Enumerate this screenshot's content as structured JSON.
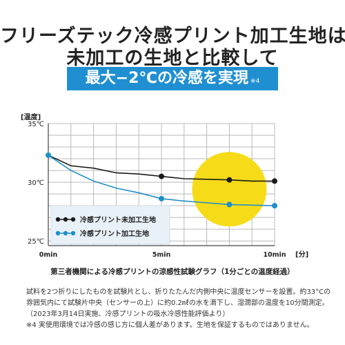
{
  "header": {
    "line1": "フリーズテック冷感プリント加工生地は",
    "line2": "未加工の生地と比較して",
    "banner": "最大−2℃の冷感を実現",
    "banner_note": "※4"
  },
  "colors": {
    "black_series": "#1a1a1a",
    "blue_series": "#1f8fc9",
    "banner": "#1f8fd1",
    "highlight": "#f6dc18",
    "grid": "#b8b8b8",
    "legend_bg": "#e8f1f8"
  },
  "chart_data": {
    "type": "line",
    "title": "第三者機関による冷感プリントの涼感性試験グラフ（1分ごとの温度経過）",
    "ylabel": "[温度]",
    "xlabel": "[分]",
    "ylim": [
      24.6,
      35
    ],
    "xlim": [
      0,
      10
    ],
    "y_ticks": [
      "35℃",
      "30℃",
      "25℃"
    ],
    "y_tick_values": [
      35,
      30,
      25
    ],
    "x_ticks": [
      "0min",
      "5min",
      "10min"
    ],
    "x_tick_values": [
      0,
      5,
      10
    ],
    "grid": true,
    "legend_position": "bottom-left",
    "highlight_circle": {
      "x": 8,
      "y": 29.4
    },
    "x": [
      0,
      1,
      2,
      3,
      4,
      5,
      6,
      7,
      8,
      9,
      10
    ],
    "series": [
      {
        "name": "冷感プリント未加工生地",
        "color": "#1a1a1a",
        "values": [
          32.3,
          31.4,
          31.2,
          30.8,
          30.7,
          30.5,
          30.3,
          30.25,
          30.2,
          30.1,
          30.1
        ],
        "markers_at": [
          5,
          8,
          10
        ]
      },
      {
        "name": "冷感プリント加工生地",
        "color": "#1f8fc9",
        "values": [
          32.3,
          31.0,
          30.1,
          29.5,
          29.1,
          28.6,
          28.4,
          28.25,
          28.1,
          28.05,
          28.0
        ],
        "markers_at": [
          0,
          5,
          8,
          10
        ]
      }
    ]
  },
  "notes": [
    "試料を2つ折りにしたものを試験片とし、折りたたんだ内側中央に温度センサーを設置。約33°Cの",
    "雰囲気内にて試験片中央（センサーの上）に約0.2㎖の水を滴下し、湿潤部の温度を10分間測定。",
    "（2023年3月14日実施、冷感プリントの吸水冷感性能評価より）",
    "※4 実使用環境では冷感の感じ方に個人差があります。生地を保証するものではありません。"
  ]
}
